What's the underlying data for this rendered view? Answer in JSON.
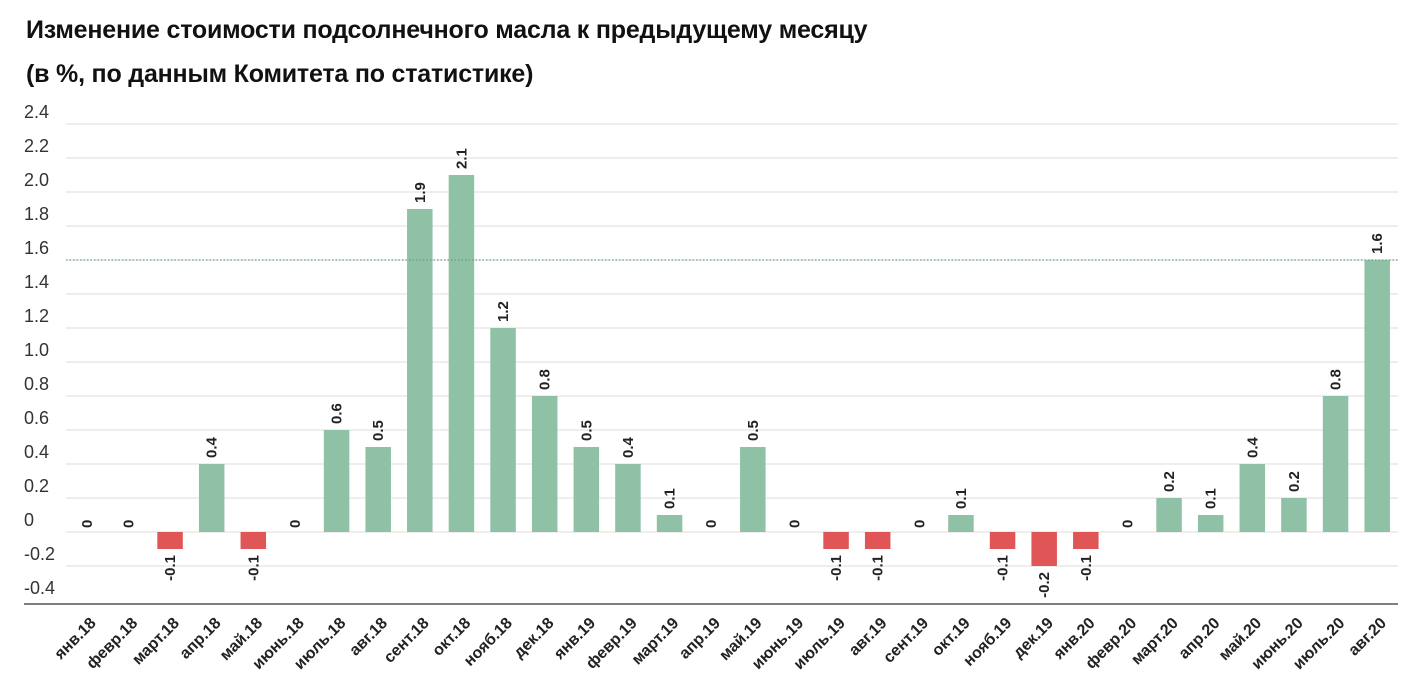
{
  "title": {
    "line1": "Изменение стоимости подсолнечного масла к предыдущему месяцу",
    "line2": "(в %, по данным Комитета по статистике)"
  },
  "chart_data": {
    "type": "bar",
    "title": "Изменение стоимости подсолнечного масла к предыдущему месяцу (в %, по данным Комитета по статистике)",
    "xlabel": "",
    "ylabel": "",
    "ylim": [
      -0.4,
      2.4
    ],
    "yticks": [
      2.4,
      2.2,
      2.0,
      1.8,
      1.6,
      1.4,
      1.2,
      1.0,
      0.8,
      0.6,
      0.4,
      0.2,
      0,
      -0.2,
      -0.4
    ],
    "ytick_labels": [
      "2.4",
      "2.2",
      "2.0",
      "1.8",
      "1.6",
      "1.4",
      "1.2",
      "1.0",
      "0.8",
      "0.6",
      "0.4",
      "0.2",
      "0",
      "-0.2",
      "-0.4"
    ],
    "reference_line": 1.6,
    "grid": true,
    "categories": [
      "янв.18",
      "февр.18",
      "март.18",
      "апр.18",
      "май.18",
      "июнь.18",
      "июль.18",
      "авг.18",
      "сент.18",
      "окт.18",
      "нояб.18",
      "дек.18",
      "янв.19",
      "февр.19",
      "март.19",
      "апр.19",
      "май.19",
      "июнь.19",
      "июль.19",
      "авг.19",
      "сент.19",
      "окт.19",
      "нояб.19",
      "дек.19",
      "янв.20",
      "февр.20",
      "март.20",
      "апр.20",
      "май.20",
      "июнь.20",
      "июль.20",
      "авг.20"
    ],
    "values": [
      0,
      0,
      -0.1,
      0.4,
      -0.1,
      0,
      0.6,
      0.5,
      1.9,
      2.1,
      1.2,
      0.8,
      0.5,
      0.4,
      0.1,
      0,
      0.5,
      0,
      -0.1,
      -0.1,
      0,
      0.1,
      -0.1,
      -0.2,
      -0.1,
      0,
      0.2,
      0.1,
      0.4,
      0.2,
      0.8,
      1.6
    ],
    "value_labels": [
      "0",
      "0",
      "-0.1",
      "0.4",
      "-0.1",
      "0",
      "0.6",
      "0.5",
      "1.9",
      "2.1",
      "1.2",
      "0.8",
      "0.5",
      "0.4",
      "0.1",
      "0",
      "0.5",
      "0",
      "-0.1",
      "-0.1",
      "0",
      "0.1",
      "-0.1",
      "-0.2",
      "-0.1",
      "0",
      "0.2",
      "0.1",
      "0.4",
      "0.2",
      "0.8",
      "1.6"
    ],
    "colors": {
      "positive": "#8fc1a6",
      "negative": "#e05656",
      "grid": "#dddddd",
      "reference_line": "#6a9e86",
      "axis": "#555555"
    }
  }
}
